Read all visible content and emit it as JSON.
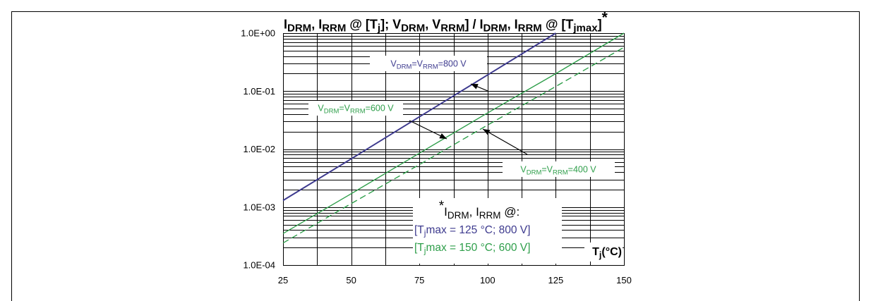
{
  "chart_data": {
    "type": "line",
    "title_parts": [
      {
        "t": "I"
      },
      {
        "sub": "DRM"
      },
      {
        "t": ", I"
      },
      {
        "sub": "RRM"
      },
      {
        "t": " @ [T"
      },
      {
        "sub": "j"
      },
      {
        "t": "]; V"
      },
      {
        "sub": "DRM"
      },
      {
        "t": ", V"
      },
      {
        "sub": "RRM"
      },
      {
        "t": "] / I"
      },
      {
        "sub": "DRM"
      },
      {
        "t": ", I"
      },
      {
        "sub": "RRM"
      },
      {
        "t": " @ [T"
      },
      {
        "sub": "jmax"
      },
      {
        "t": "]"
      },
      {
        "sup": "*"
      }
    ],
    "xlabel_parts": [
      {
        "t": "T"
      },
      {
        "sub": "j"
      },
      {
        "t": "(°C)"
      }
    ],
    "xlim": [
      25,
      150
    ],
    "ylim": [
      0.0001,
      1
    ],
    "yscale": "log",
    "grid": true,
    "x_ticks": [
      25,
      50,
      75,
      100,
      125,
      150
    ],
    "x_tick_labels": [
      "25",
      "50",
      "75",
      "100",
      "125",
      "150"
    ],
    "y_ticks": [
      1,
      0.1,
      0.01,
      0.001,
      0.0001
    ],
    "y_tick_labels": [
      "1.0E+00",
      "1.0E-01",
      "1.0E-02",
      "1.0E-03",
      "1.0E-04"
    ],
    "series": [
      {
        "name_parts": [
          {
            "t": "V"
          },
          {
            "sub": "DRM"
          },
          {
            "t": "=V"
          },
          {
            "sub": "RRM"
          },
          {
            "t": "=800 V"
          }
        ],
        "color": "#3d3a8e",
        "line_style": "solid",
        "x": [
          25,
          50,
          75,
          100,
          125
        ],
        "y": [
          0.0013,
          0.0068,
          0.036,
          0.19,
          1.0
        ]
      },
      {
        "name_parts": [
          {
            "t": "V"
          },
          {
            "sub": "DRM"
          },
          {
            "t": "=V"
          },
          {
            "sub": "RRM"
          },
          {
            "t": "=600 V"
          }
        ],
        "color": "#2e9e4a",
        "line_style": "solid",
        "x": [
          25,
          50,
          75,
          100,
          125,
          150
        ],
        "y": [
          0.00035,
          0.0017,
          0.0085,
          0.042,
          0.2,
          1.0
        ]
      },
      {
        "name_parts": [
          {
            "t": "V"
          },
          {
            "sub": "DRM"
          },
          {
            "t": "=V"
          },
          {
            "sub": "RRM"
          },
          {
            "t": "=400 V"
          }
        ],
        "color": "#2e9e4a",
        "line_style": "dashed",
        "x": [
          25,
          50,
          75,
          100,
          125,
          150
        ],
        "y": [
          0.00024,
          0.00115,
          0.0054,
          0.026,
          0.12,
          0.57
        ]
      }
    ],
    "note": {
      "heading_parts": [
        {
          "sup": "*"
        },
        {
          "t": "I"
        },
        {
          "sub": "DRM"
        },
        {
          "t": ", I"
        },
        {
          "sub": "RRM"
        },
        {
          "t": " @:"
        }
      ],
      "lines": [
        {
          "parts": [
            {
              "t": "[T"
            },
            {
              "sub": "j"
            },
            {
              "t": "max = 125 °C; 800 V]"
            }
          ],
          "color": "#3d3a8e"
        },
        {
          "parts": [
            {
              "t": "[T"
            },
            {
              "sub": "j"
            },
            {
              "t": "max = 150 °C; 600 V]"
            }
          ],
          "color": "#2e9e4a"
        }
      ]
    }
  }
}
